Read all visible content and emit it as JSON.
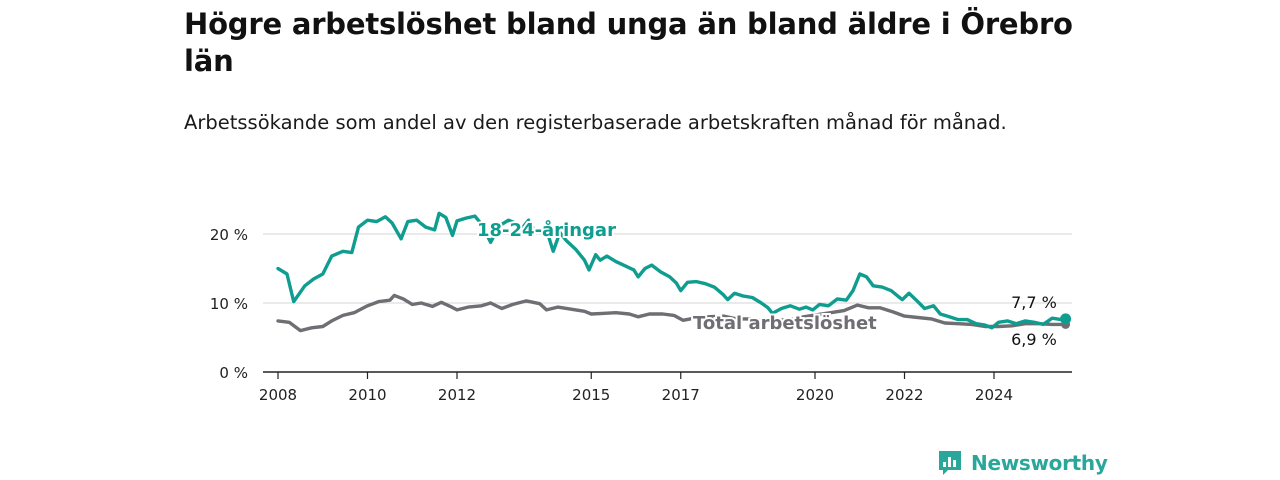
{
  "title": "Högre arbetslöshet bland unga än bland äldre i Örebro län",
  "subtitle": "Arbetssökande som andel av den registerbaserade arbetskraften månad för månad.",
  "brand": {
    "name": "Newsworthy",
    "icon": "bar-chart-logo-icon",
    "color": "#2aa79b"
  },
  "chart_data": {
    "type": "line",
    "x_ticks": [
      "2008",
      "2010",
      "2012",
      "2015",
      "2017",
      "2020",
      "2022",
      "2024"
    ],
    "y_ticks": [
      "0 %",
      "10 %",
      "20 %"
    ],
    "ylim": [
      0,
      25
    ],
    "grid": true,
    "series": [
      {
        "name": "18-24-åringar",
        "color": "#0f9d90",
        "end_label": "7,7 %",
        "points": [
          [
            2008.0,
            15.0
          ],
          [
            2008.2,
            14.2
          ],
          [
            2008.35,
            10.2
          ],
          [
            2008.6,
            12.5
          ],
          [
            2008.8,
            13.5
          ],
          [
            2009.0,
            14.2
          ],
          [
            2009.2,
            16.8
          ],
          [
            2009.45,
            17.5
          ],
          [
            2009.65,
            17.3
          ],
          [
            2009.8,
            21.0
          ],
          [
            2010.0,
            22.0
          ],
          [
            2010.2,
            21.8
          ],
          [
            2010.4,
            22.5
          ],
          [
            2010.55,
            21.6
          ],
          [
            2010.75,
            19.3
          ],
          [
            2010.9,
            21.8
          ],
          [
            2011.1,
            22.0
          ],
          [
            2011.3,
            21.0
          ],
          [
            2011.5,
            20.6
          ],
          [
            2011.6,
            23.0
          ],
          [
            2011.75,
            22.4
          ],
          [
            2011.9,
            19.8
          ],
          [
            2012.0,
            21.9
          ],
          [
            2012.2,
            22.3
          ],
          [
            2012.4,
            22.6
          ],
          [
            2012.55,
            21.4
          ],
          [
            2012.75,
            18.8
          ],
          [
            2012.95,
            21.2
          ],
          [
            2013.15,
            22.0
          ],
          [
            2013.3,
            21.6
          ],
          [
            2013.45,
            20.8
          ],
          [
            2013.6,
            22.0
          ],
          [
            2013.75,
            20.3
          ],
          [
            2014.0,
            20.6
          ],
          [
            2014.15,
            17.5
          ],
          [
            2014.3,
            20.2
          ],
          [
            2014.45,
            19.0
          ],
          [
            2014.65,
            17.8
          ],
          [
            2014.85,
            16.2
          ],
          [
            2014.95,
            14.8
          ],
          [
            2015.1,
            17.0
          ],
          [
            2015.2,
            16.2
          ],
          [
            2015.35,
            16.8
          ],
          [
            2015.55,
            16.0
          ],
          [
            2015.75,
            15.4
          ],
          [
            2015.95,
            14.8
          ],
          [
            2016.05,
            13.8
          ],
          [
            2016.2,
            15.0
          ],
          [
            2016.35,
            15.5
          ],
          [
            2016.55,
            14.5
          ],
          [
            2016.75,
            13.8
          ],
          [
            2016.9,
            12.9
          ],
          [
            2017.0,
            11.8
          ],
          [
            2017.15,
            13.0
          ],
          [
            2017.35,
            13.1
          ],
          [
            2017.55,
            12.8
          ],
          [
            2017.75,
            12.3
          ],
          [
            2017.95,
            11.2
          ],
          [
            2018.05,
            10.5
          ],
          [
            2018.2,
            11.4
          ],
          [
            2018.4,
            11.0
          ],
          [
            2018.6,
            10.8
          ],
          [
            2018.8,
            10.0
          ],
          [
            2018.95,
            9.3
          ],
          [
            2019.05,
            8.5
          ],
          [
            2019.25,
            9.2
          ],
          [
            2019.45,
            9.6
          ],
          [
            2019.65,
            9.1
          ],
          [
            2019.8,
            9.4
          ],
          [
            2019.95,
            9.0
          ],
          [
            2020.1,
            9.8
          ],
          [
            2020.3,
            9.6
          ],
          [
            2020.5,
            10.6
          ],
          [
            2020.7,
            10.4
          ],
          [
            2020.85,
            11.8
          ],
          [
            2021.0,
            14.2
          ],
          [
            2021.15,
            13.8
          ],
          [
            2021.3,
            12.5
          ],
          [
            2021.5,
            12.3
          ],
          [
            2021.7,
            11.8
          ],
          [
            2021.85,
            11.0
          ],
          [
            2021.95,
            10.5
          ],
          [
            2022.1,
            11.4
          ],
          [
            2022.25,
            10.5
          ],
          [
            2022.45,
            9.2
          ],
          [
            2022.65,
            9.6
          ],
          [
            2022.8,
            8.4
          ],
          [
            2023.0,
            8.0
          ],
          [
            2023.2,
            7.6
          ],
          [
            2023.4,
            7.6
          ],
          [
            2023.6,
            7.0
          ],
          [
            2023.8,
            6.8
          ],
          [
            2023.95,
            6.4
          ],
          [
            2024.1,
            7.2
          ],
          [
            2024.3,
            7.4
          ],
          [
            2024.5,
            7.0
          ],
          [
            2024.7,
            7.4
          ],
          [
            2024.9,
            7.2
          ],
          [
            2025.1,
            6.9
          ],
          [
            2025.3,
            7.8
          ],
          [
            2025.5,
            7.6
          ],
          [
            2025.6,
            7.7
          ]
        ]
      },
      {
        "name": "Total arbetslöshet",
        "color": "#6e6e73",
        "end_label": "6,9 %",
        "points": [
          [
            2008.0,
            7.4
          ],
          [
            2008.25,
            7.2
          ],
          [
            2008.5,
            6.0
          ],
          [
            2008.75,
            6.4
          ],
          [
            2009.0,
            6.6
          ],
          [
            2009.2,
            7.4
          ],
          [
            2009.45,
            8.2
          ],
          [
            2009.7,
            8.6
          ],
          [
            2010.0,
            9.6
          ],
          [
            2010.25,
            10.2
          ],
          [
            2010.5,
            10.4
          ],
          [
            2010.6,
            11.1
          ],
          [
            2010.8,
            10.6
          ],
          [
            2011.0,
            9.8
          ],
          [
            2011.2,
            10.0
          ],
          [
            2011.45,
            9.5
          ],
          [
            2011.65,
            10.1
          ],
          [
            2011.85,
            9.5
          ],
          [
            2012.0,
            9.0
          ],
          [
            2012.25,
            9.4
          ],
          [
            2012.55,
            9.6
          ],
          [
            2012.75,
            10.0
          ],
          [
            2013.0,
            9.2
          ],
          [
            2013.25,
            9.8
          ],
          [
            2013.55,
            10.3
          ],
          [
            2013.85,
            9.9
          ],
          [
            2014.0,
            9.0
          ],
          [
            2014.25,
            9.4
          ],
          [
            2014.55,
            9.1
          ],
          [
            2014.85,
            8.8
          ],
          [
            2015.0,
            8.4
          ],
          [
            2015.25,
            8.5
          ],
          [
            2015.55,
            8.6
          ],
          [
            2015.85,
            8.4
          ],
          [
            2016.05,
            8.0
          ],
          [
            2016.3,
            8.4
          ],
          [
            2016.6,
            8.4
          ],
          [
            2016.85,
            8.2
          ],
          [
            2017.05,
            7.5
          ],
          [
            2017.3,
            7.8
          ],
          [
            2017.6,
            8.0
          ],
          [
            2017.95,
            8.1
          ],
          [
            2018.25,
            7.7
          ],
          [
            2018.55,
            7.7
          ],
          [
            2018.85,
            7.4
          ],
          [
            2019.15,
            7.5
          ],
          [
            2019.45,
            7.6
          ],
          [
            2019.75,
            8.0
          ],
          [
            2020.05,
            8.3
          ],
          [
            2020.35,
            8.6
          ],
          [
            2020.65,
            8.9
          ],
          [
            2020.95,
            9.7
          ],
          [
            2021.2,
            9.3
          ],
          [
            2021.45,
            9.3
          ],
          [
            2021.75,
            8.7
          ],
          [
            2022.0,
            8.1
          ],
          [
            2022.3,
            7.9
          ],
          [
            2022.6,
            7.7
          ],
          [
            2022.9,
            7.1
          ],
          [
            2023.2,
            7.0
          ],
          [
            2023.5,
            6.9
          ],
          [
            2023.8,
            6.6
          ],
          [
            2024.1,
            6.6
          ],
          [
            2024.4,
            6.7
          ],
          [
            2024.7,
            7.0
          ],
          [
            2025.0,
            7.0
          ],
          [
            2025.3,
            6.9
          ],
          [
            2025.6,
            6.9
          ]
        ]
      }
    ]
  }
}
